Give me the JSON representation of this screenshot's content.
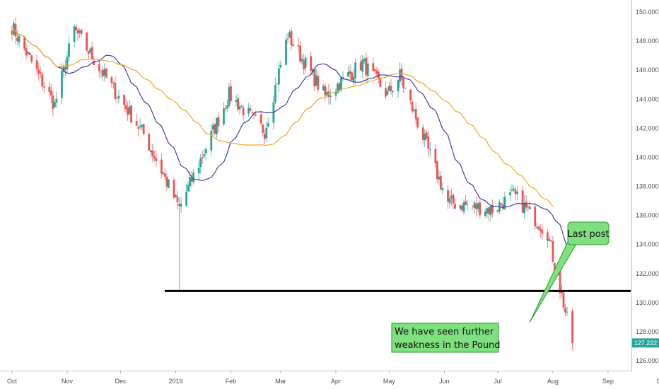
{
  "chart_data": {
    "type": "candlestick",
    "title": "",
    "xlabel": "",
    "ylabel": "",
    "ylim": [
      125.4,
      150.6
    ],
    "y_ticks": [
      "126.000",
      "128.000",
      "130.000",
      "132.000",
      "134.000",
      "136.000",
      "138.000",
      "140.000",
      "142.000",
      "144.000",
      "146.000",
      "148.000",
      "150.000"
    ],
    "x_ticks": [
      "Oct",
      "Nov",
      "Dec",
      "2019",
      "Feb",
      "Mar",
      "Apr",
      "May",
      "Jun",
      "Jul",
      "Aug",
      "Sep",
      "Oct"
    ],
    "last_price": "127.222",
    "support_level": 130.8,
    "annotations": {
      "last_post": "Last post",
      "comment": [
        "We have seen further",
        "weakness in the Pound"
      ]
    },
    "key_closes": [
      {
        "date": "2018-10-01",
        "value": 149.0
      },
      {
        "date": "2018-10-25",
        "value": 143.6
      },
      {
        "date": "2018-11-05",
        "value": 148.8
      },
      {
        "date": "2018-11-22",
        "value": 145.6
      },
      {
        "date": "2018-12-14",
        "value": 141.6
      },
      {
        "date": "2019-01-03",
        "value": 136.5
      },
      {
        "date": "2019-01-31",
        "value": 144.3
      },
      {
        "date": "2019-02-20",
        "value": 141.8
      },
      {
        "date": "2019-03-05",
        "value": 148.4
      },
      {
        "date": "2019-03-26",
        "value": 144.2
      },
      {
        "date": "2019-04-16",
        "value": 146.5
      },
      {
        "date": "2019-04-30",
        "value": 144.3
      },
      {
        "date": "2019-05-07",
        "value": 145.6
      },
      {
        "date": "2019-06-03",
        "value": 136.9
      },
      {
        "date": "2019-06-28",
        "value": 136.4
      },
      {
        "date": "2019-07-10",
        "value": 137.4
      },
      {
        "date": "2019-07-29",
        "value": 134.8
      },
      {
        "date": "2019-08-12",
        "value": 127.2
      }
    ],
    "series": [
      {
        "type": "moving-average",
        "color": "#3f3fa0"
      },
      {
        "type": "moving-average",
        "color": "#f5a623"
      }
    ],
    "colors": {
      "up": "#26a69a",
      "down": "#ef5350",
      "support_line": "#000000",
      "label_fill": "#7ee07e",
      "label_stroke": "#2f9a2f",
      "price_tag": "#26a69a"
    },
    "grid": false,
    "legend": "none"
  }
}
